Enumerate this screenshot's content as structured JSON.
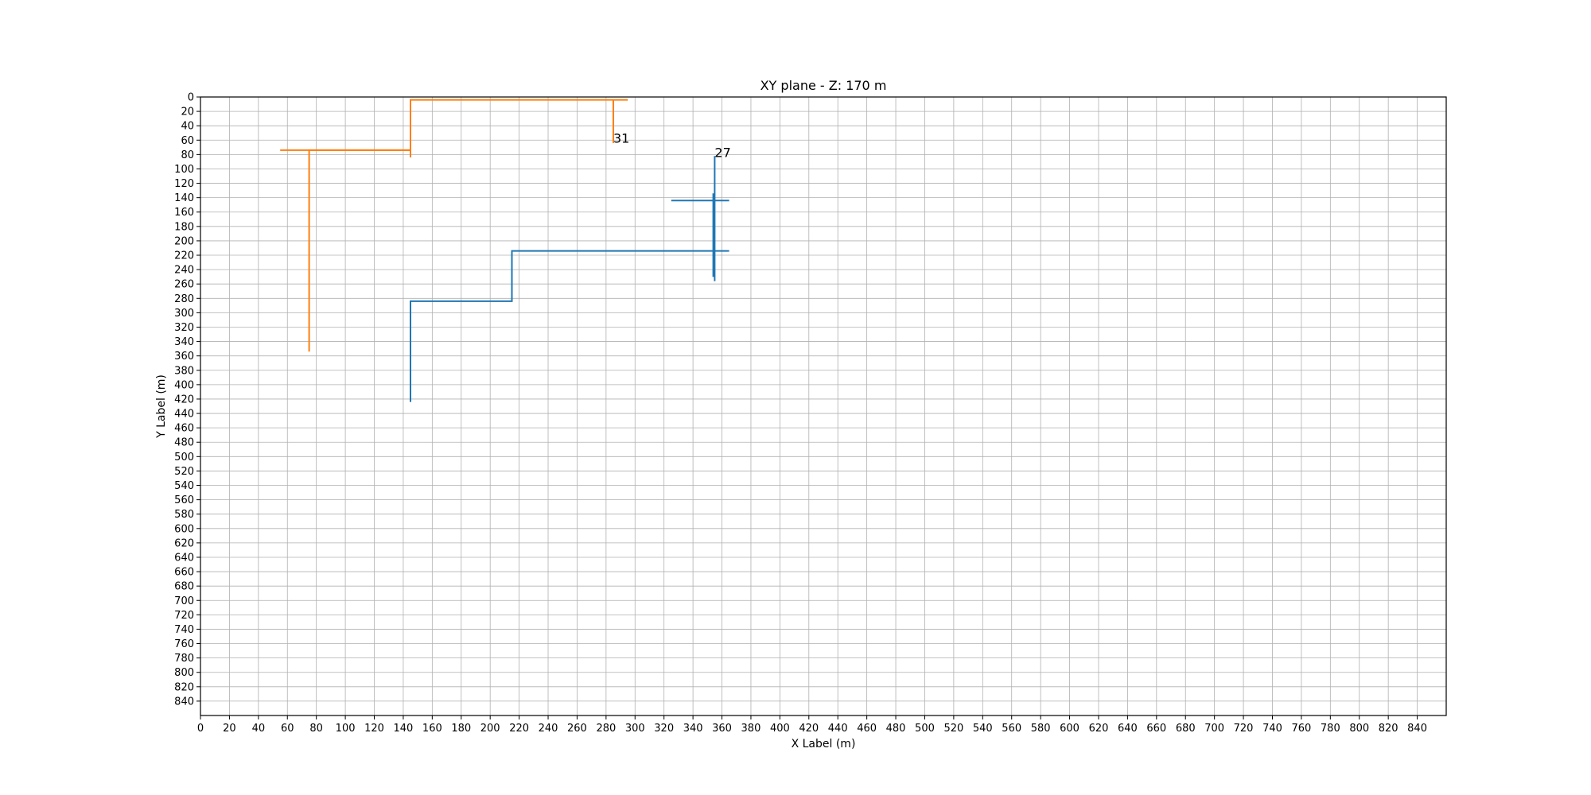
{
  "chart_data": {
    "type": "line",
    "title": "XY plane - Z: 170 m",
    "xlabel": "X Label (m)",
    "ylabel": "Y Label (m)",
    "xlim": [
      0,
      860
    ],
    "ylim": [
      860,
      0
    ],
    "y_inverted": true,
    "grid": true,
    "x_ticks": [
      0,
      20,
      40,
      60,
      80,
      100,
      120,
      140,
      160,
      180,
      200,
      220,
      240,
      260,
      280,
      300,
      320,
      340,
      360,
      380,
      400,
      420,
      440,
      460,
      480,
      500,
      520,
      540,
      560,
      580,
      600,
      620,
      640,
      660,
      680,
      700,
      720,
      740,
      760,
      780,
      800,
      820,
      840
    ],
    "y_ticks": [
      0,
      20,
      40,
      60,
      80,
      100,
      120,
      140,
      160,
      180,
      200,
      220,
      240,
      260,
      280,
      300,
      320,
      340,
      360,
      380,
      400,
      420,
      440,
      460,
      480,
      500,
      520,
      540,
      560,
      580,
      600,
      620,
      640,
      660,
      680,
      700,
      720,
      740,
      760,
      780,
      800,
      820,
      840
    ],
    "series": [
      {
        "color": "#1f77b4",
        "label": "27",
        "label_point": [
          355,
          78
        ],
        "segments": [
          [
            [
              145,
              424
            ],
            [
              145,
              284
            ],
            [
              215,
              284
            ],
            [
              215,
              214
            ],
            [
              365,
              214
            ]
          ],
          [
            [
              355,
              82
            ],
            [
              355,
              256
            ]
          ],
          [
            [
              325,
              144
            ],
            [
              365,
              144
            ]
          ],
          [
            [
              354,
              134
            ],
            [
              354,
              250
            ]
          ]
        ]
      },
      {
        "color": "#ff7f0e",
        "label": "31",
        "label_point": [
          285,
          58
        ],
        "segments": [
          [
            [
              75,
              354
            ],
            [
              75,
              74
            ],
            [
              145,
              74
            ],
            [
              145,
              4
            ],
            [
              295,
              4
            ]
          ],
          [
            [
              55,
              74
            ],
            [
              145,
              74
            ]
          ],
          [
            [
              145,
              74
            ],
            [
              145,
              84
            ]
          ],
          [
            [
              285,
              4
            ],
            [
              285,
              64
            ]
          ]
        ]
      }
    ]
  }
}
